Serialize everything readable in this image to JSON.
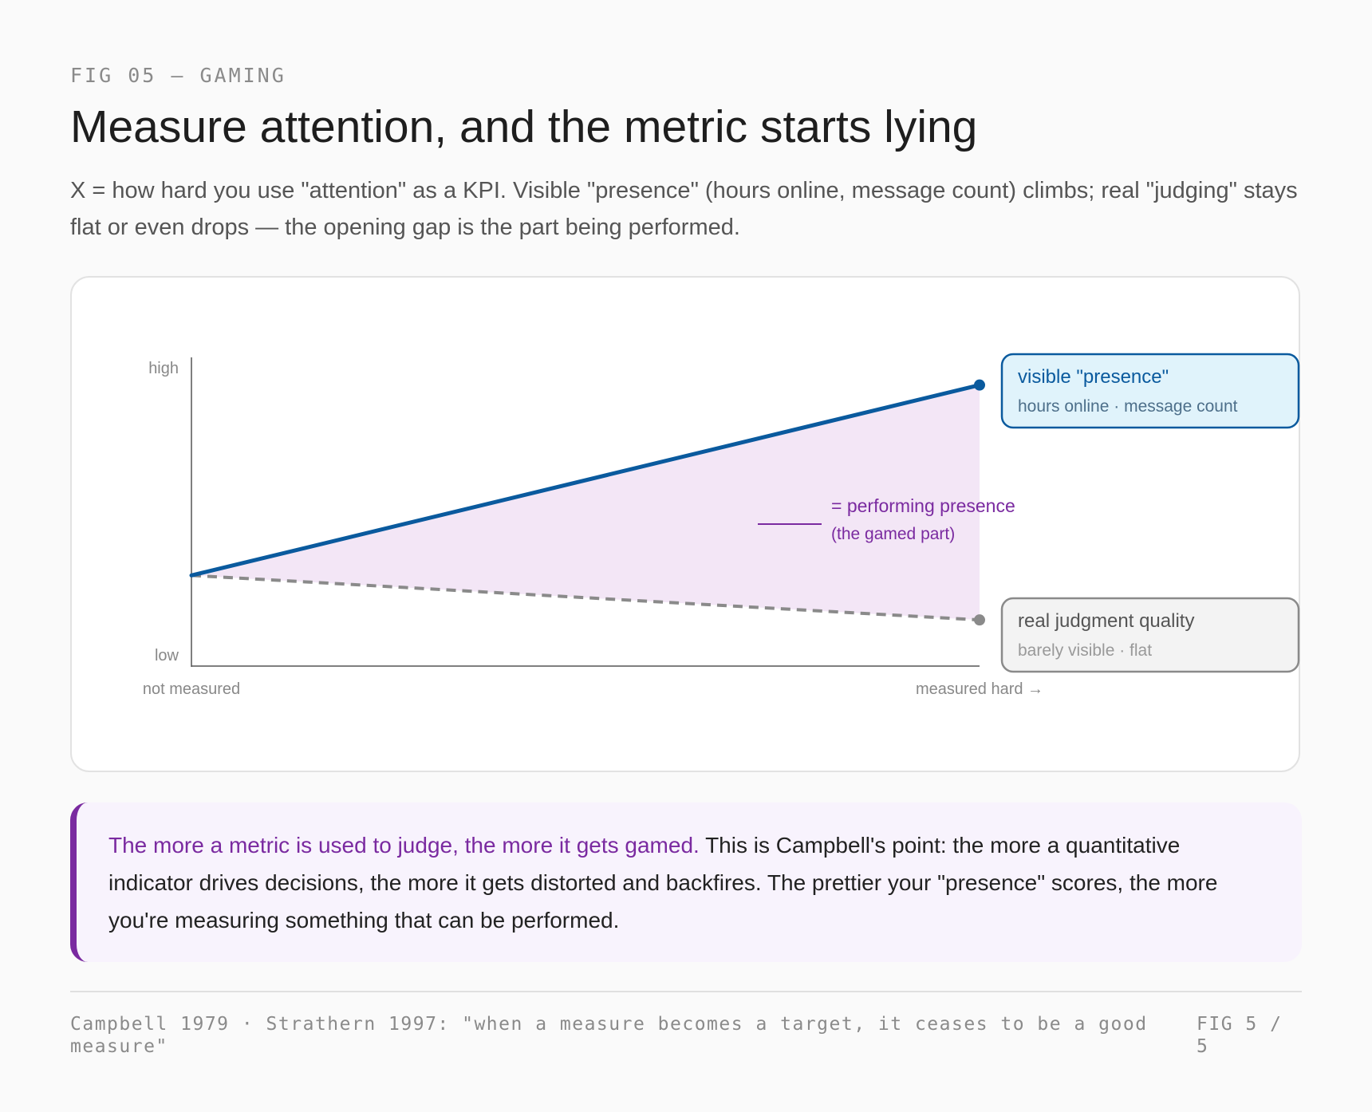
{
  "header": {
    "kicker": "FIG 05 — GAMING",
    "title": "Measure attention, and the metric starts lying",
    "subtitle": "X = how hard you use \"attention\" as a KPI. Visible \"presence\" (hours online, message count) climbs; real \"judging\" stays flat or even drops — the opening gap is the part being performed."
  },
  "chart_data": {
    "type": "line",
    "x": [
      0,
      1
    ],
    "series": [
      {
        "name": "visible \"presence\"",
        "sublabel": "hours online · message count",
        "values": [
          0.29,
          0.91
        ],
        "color": "#0a5a9e",
        "style": "solid"
      },
      {
        "name": "real judgment quality",
        "sublabel": "barely visible · flat",
        "values": [
          0.29,
          0.145
        ],
        "color": "#8a8a8a",
        "style": "dashed"
      }
    ],
    "gap": {
      "label": "= performing presence",
      "sublabel": "(the gamed part)",
      "color": "#7a2aa0",
      "fill": "#f3e6f6"
    },
    "y_tick_labels": [
      "low",
      "high"
    ],
    "x_tick_labels": [
      "not measured",
      "measured hard →"
    ],
    "ylim": [
      0,
      1
    ],
    "xlim": [
      0,
      1
    ],
    "grid": false,
    "legend": "right"
  },
  "callout": {
    "lead": "The more a metric is used to judge, the more it gets gamed.",
    "body": " This is Campbell's point: the more a quantitative indicator drives decisions, the more it gets distorted and backfires. The prettier your \"presence\" scores, the more you're measuring something that can be performed."
  },
  "footer": {
    "sources": "Campbell 1979 · Strathern 1997: \"when a measure becomes a target, it ceases to be a good measure\"",
    "page": "FIG 5 / 5"
  },
  "colors": {
    "accent": "#7a2aa0",
    "presence": "#0a5a9e",
    "judgment": "#8a8a8a",
    "presence_box_fill": "#e0f3fb",
    "judgment_box_fill": "#f3f3f3"
  }
}
